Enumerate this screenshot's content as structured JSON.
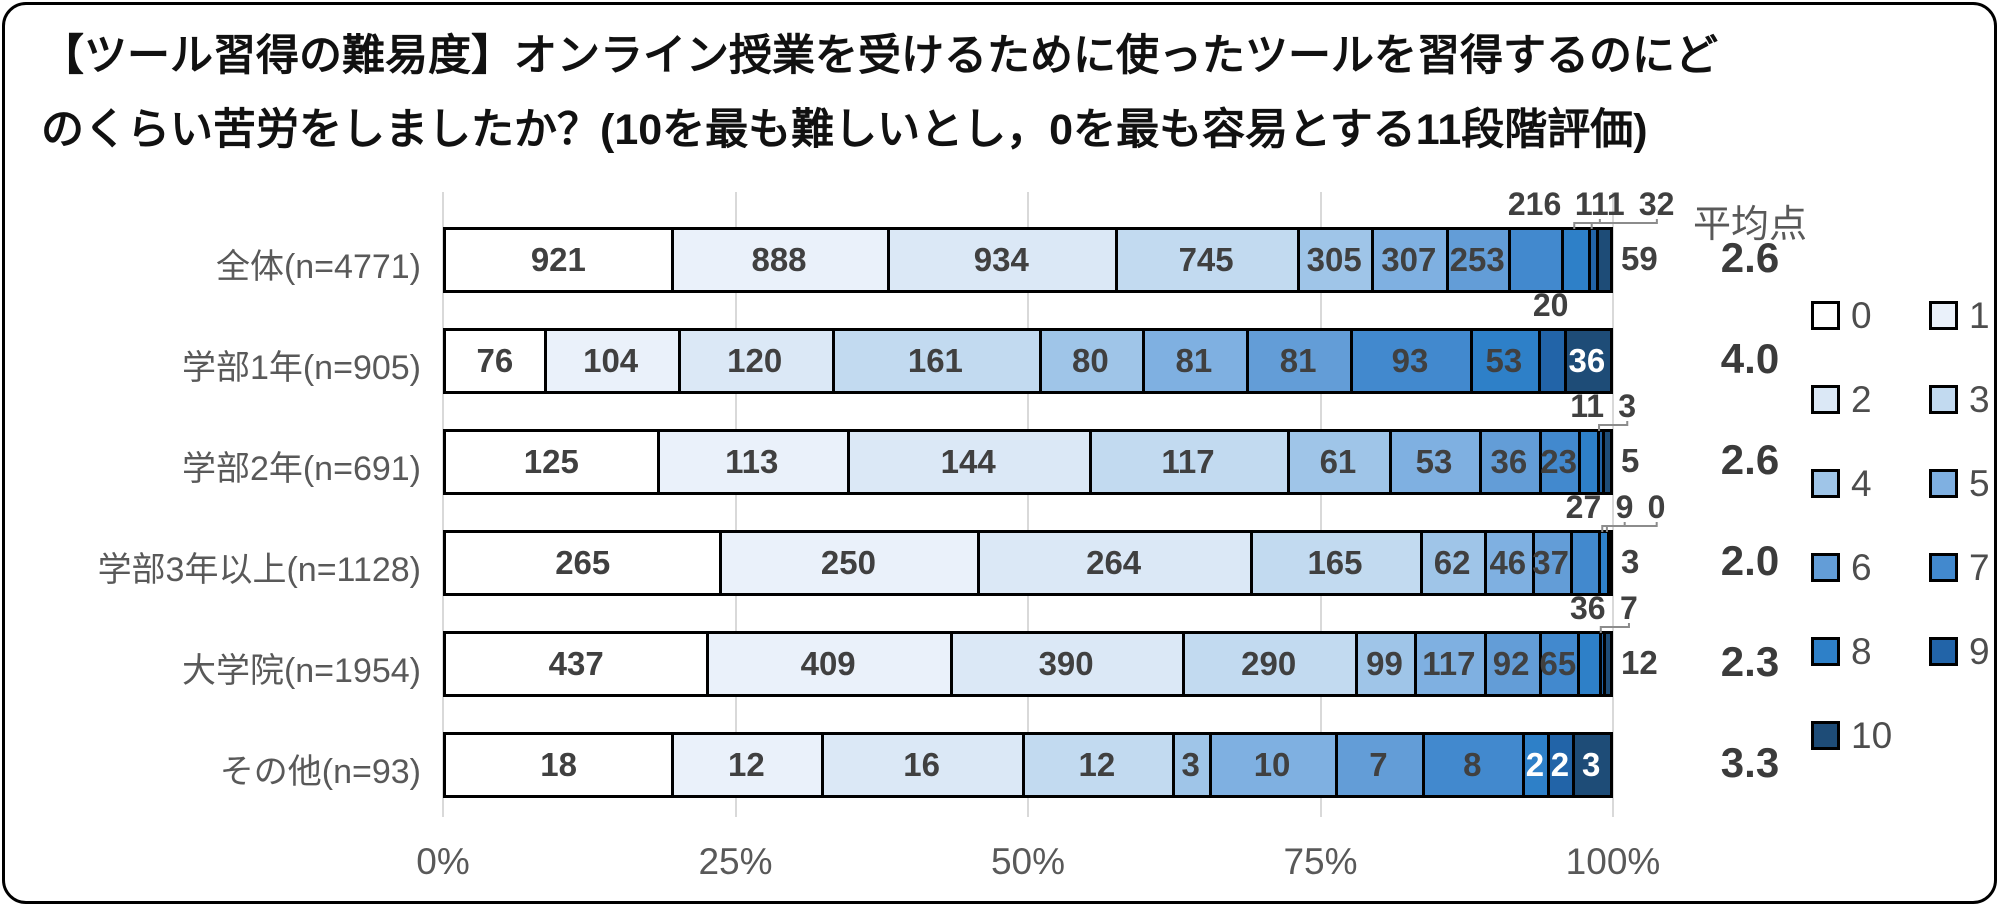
{
  "title": {
    "line1": "【ツール習得の難易度】オンライン授業を受けるために使ったツールを習得するのにど",
    "line2": "のくらい苦労をしましたか？(10を最も難しいとし，0を最も容易とする11段階評価)"
  },
  "chart_data": {
    "type": "bar",
    "variant": "horizontal-100%-stacked",
    "title": "【ツール習得の難易度】オンライン授業を受けるために使ったツールを習得するのにどのくらい苦労をしましたか？(10を最も難しいとし，0を最も容易とする11段階評価)",
    "series_labels": [
      "0",
      "1",
      "2",
      "3",
      "4",
      "5",
      "6",
      "7",
      "8",
      "9",
      "10"
    ],
    "colors": [
      "#FFFFFF",
      "#EAF1FA",
      "#DBE8F6",
      "#C2DAF0",
      "#9FC5E8",
      "#7FB0E1",
      "#639DD7",
      "#4289CE",
      "#2E80C8",
      "#2264A8",
      "#1E4C77"
    ],
    "categories": [
      "全体(n=4771)",
      "学部1年(n=905)",
      "学部2年(n=691)",
      "学部3年以上(n=1128)",
      "大学院(n=1954)",
      "その他(n=93)"
    ],
    "rows": [
      {
        "label": "全体(n=4771)",
        "n": 4771,
        "values": [
          921,
          888,
          934,
          745,
          305,
          307,
          253,
          216,
          111,
          32,
          59
        ],
        "average": "2.6",
        "placements": [
          "in",
          "in",
          "in",
          "in",
          "in",
          "in",
          "in",
          "above",
          "above",
          "above",
          "right"
        ]
      },
      {
        "label": "学部1年(n=905)",
        "n": 905,
        "values": [
          76,
          104,
          120,
          161,
          80,
          81,
          81,
          93,
          53,
          20,
          36
        ],
        "average": "4.0",
        "placements": [
          "in",
          "in",
          "in",
          "in",
          "in",
          "in",
          "in",
          "in",
          "in",
          "above",
          "in-white"
        ]
      },
      {
        "label": "学部2年(n=691)",
        "n": 691,
        "values": [
          125,
          113,
          144,
          117,
          61,
          53,
          36,
          23,
          11,
          3,
          5
        ],
        "average": "2.6",
        "placements": [
          "in",
          "in",
          "in",
          "in",
          "in",
          "in",
          "in",
          "in",
          "above",
          "above",
          "right"
        ]
      },
      {
        "label": "学部3年以上(n=1128)",
        "n": 1128,
        "values": [
          265,
          250,
          264,
          165,
          62,
          46,
          37,
          27,
          9,
          0,
          3
        ],
        "average": "2.0",
        "placements": [
          "in",
          "in",
          "in",
          "in",
          "in",
          "in",
          "in",
          "above",
          "above",
          "above",
          "right"
        ]
      },
      {
        "label": "大学院(n=1954)",
        "n": 1954,
        "values": [
          437,
          409,
          390,
          290,
          99,
          117,
          92,
          65,
          36,
          7,
          12
        ],
        "average": "2.3",
        "placements": [
          "in",
          "in",
          "in",
          "in",
          "in",
          "in",
          "in",
          "in",
          "above",
          "above",
          "right"
        ]
      },
      {
        "label": "その他(n=93)",
        "n": 93,
        "values": [
          18,
          12,
          16,
          12,
          3,
          10,
          7,
          8,
          2,
          2,
          3
        ],
        "average": "3.3",
        "placements": [
          "in",
          "in",
          "in",
          "in",
          "in",
          "in",
          "in",
          "in",
          "in-white",
          "in-white",
          "in-white"
        ]
      }
    ],
    "average_header": "平均点",
    "x_ticks": [
      "0%",
      "25%",
      "50%",
      "75%",
      "100%"
    ],
    "xlim": [
      0,
      100
    ],
    "gridlines": true,
    "legend_position": "right",
    "label_text_color": "#404040",
    "label_text_color_light": "#FFFFFF"
  }
}
